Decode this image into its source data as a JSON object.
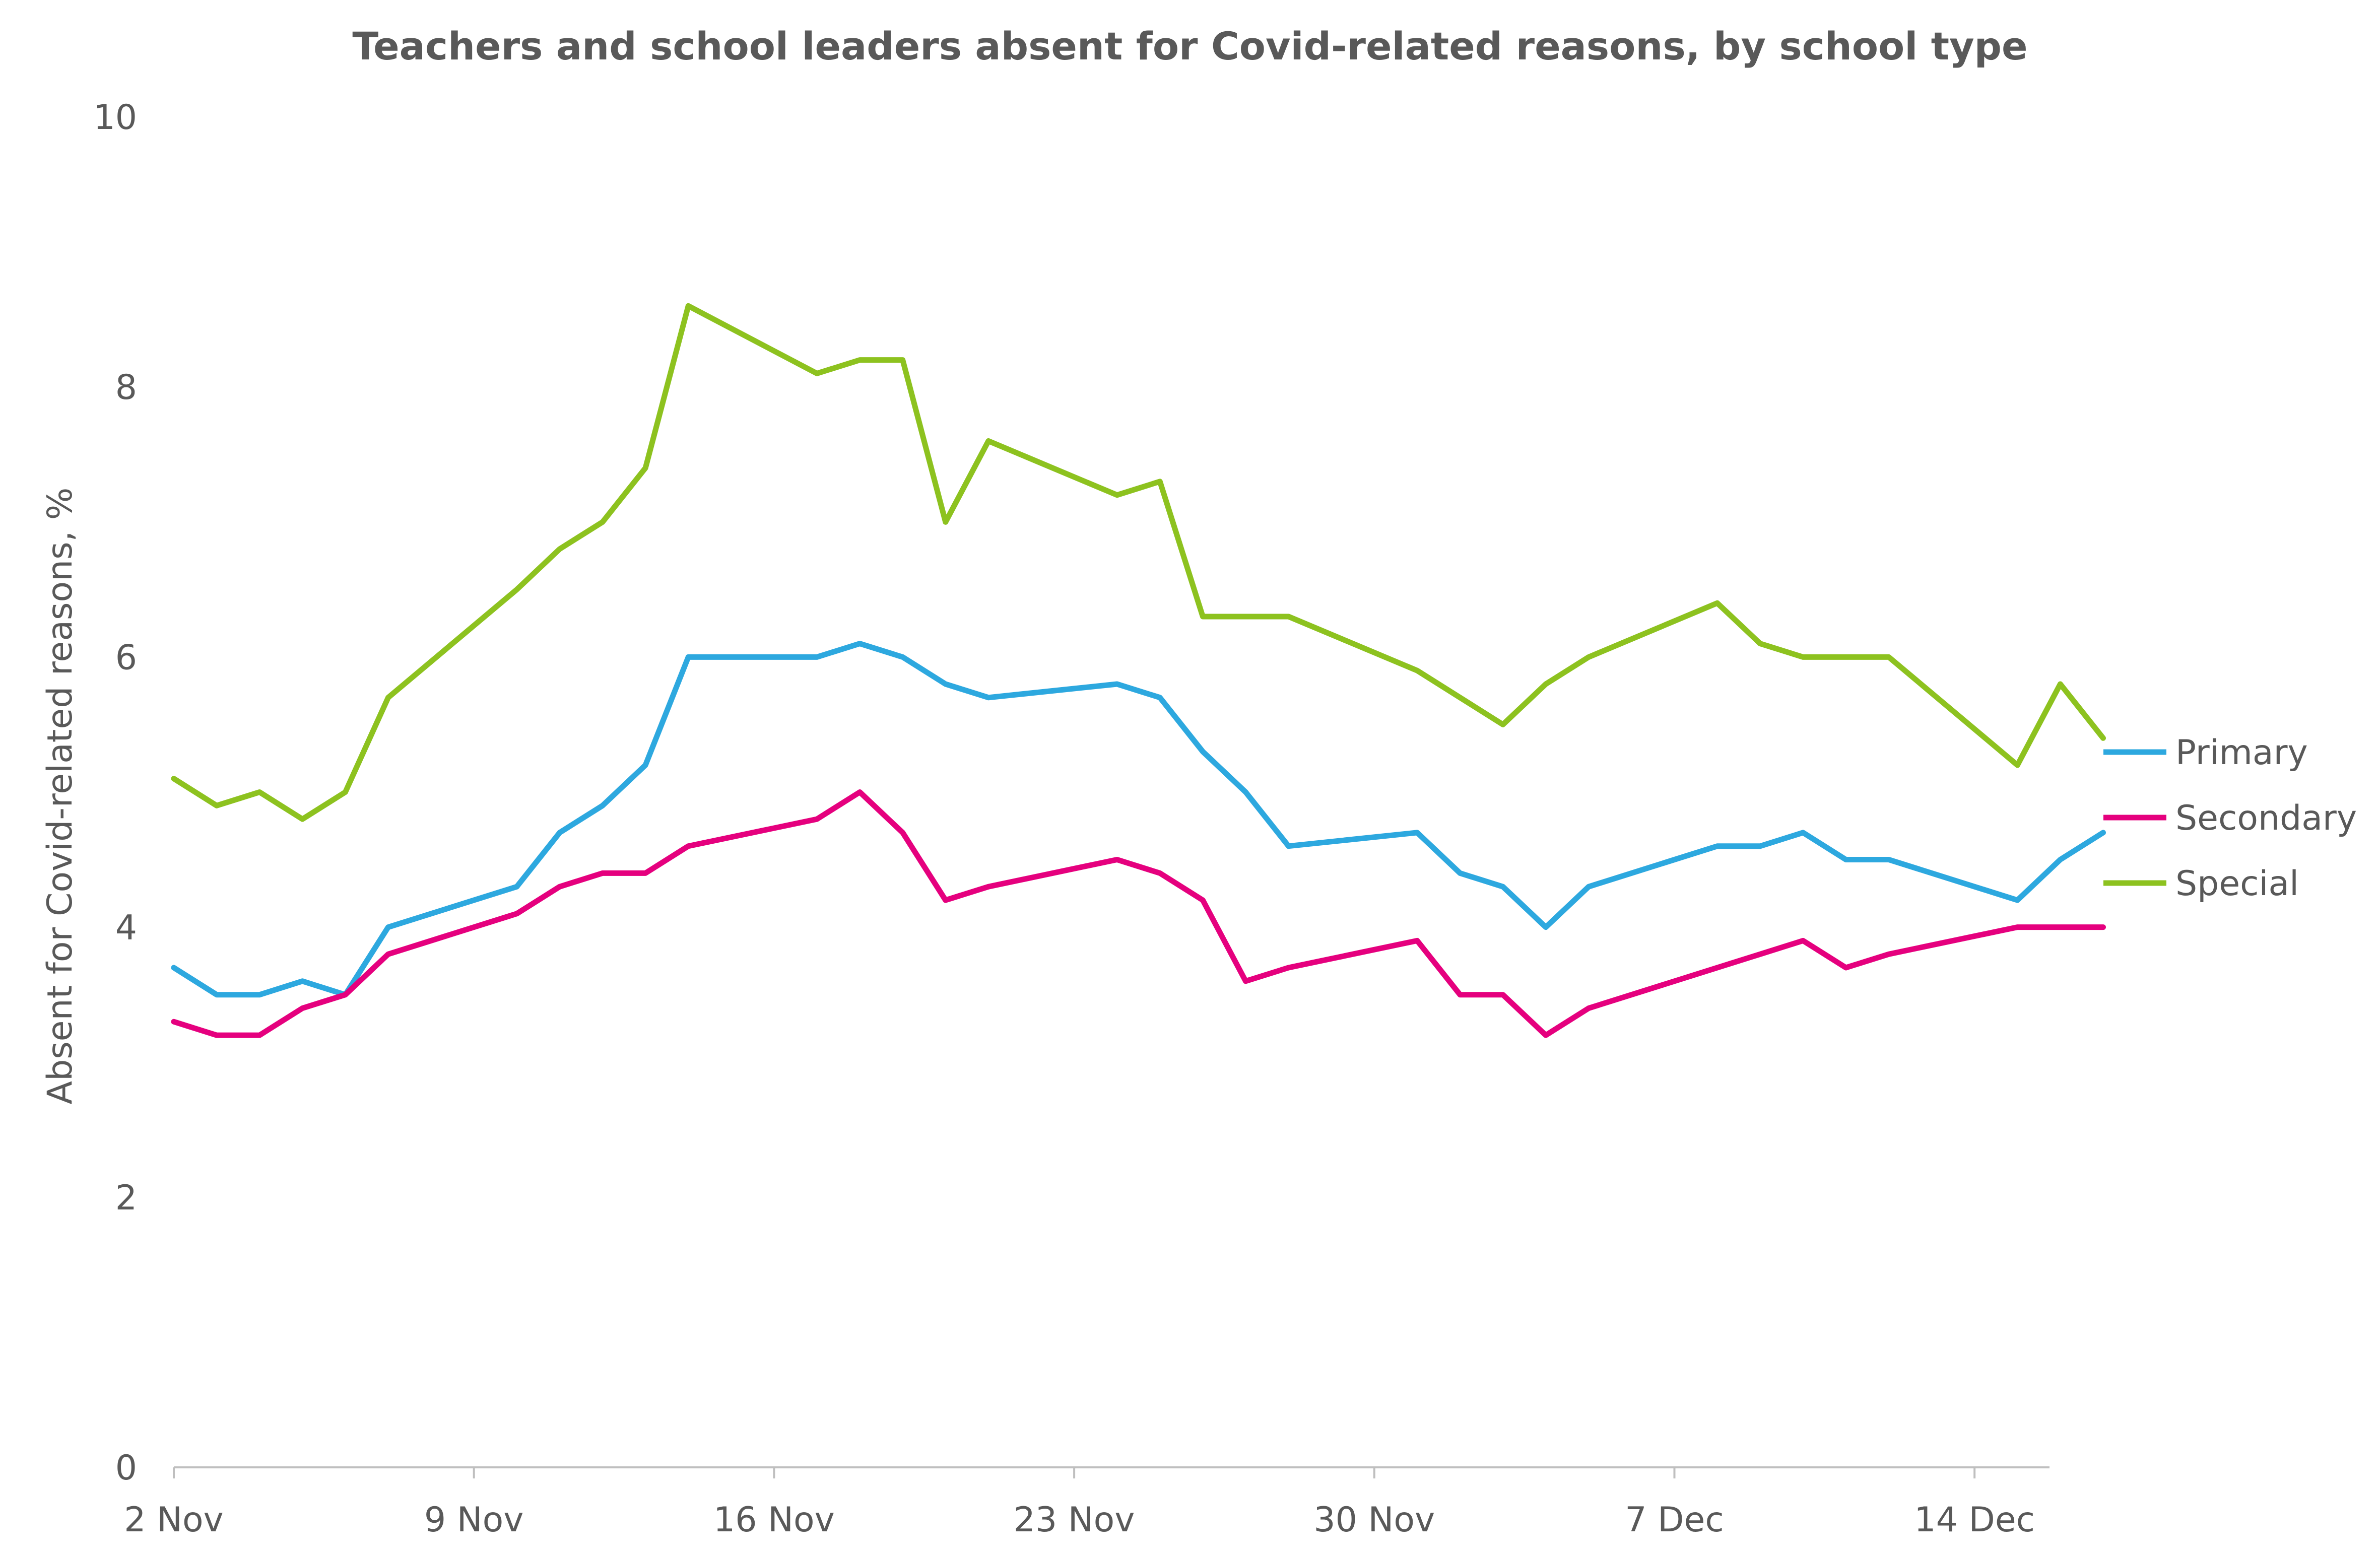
{
  "chart_data": {
    "type": "line",
    "title": "Teachers and school leaders absent for Covid-related reasons, by school type",
    "ylabel": "Absent for Covid-related reasons, %",
    "xlabel": "",
    "ylim": [
      0,
      10
    ],
    "y_ticks": [
      0,
      2,
      4,
      6,
      8,
      10
    ],
    "x_range": [
      "2020-11-02",
      "2020-12-18"
    ],
    "x_ticks": [
      {
        "date": "2020-11-02",
        "label": "2 Nov"
      },
      {
        "date": "2020-11-09",
        "label": "9 Nov"
      },
      {
        "date": "2020-11-16",
        "label": "16 Nov"
      },
      {
        "date": "2020-11-23",
        "label": "23 Nov"
      },
      {
        "date": "2020-11-30",
        "label": "30 Nov"
      },
      {
        "date": "2020-12-07",
        "label": "7 Dec"
      },
      {
        "date": "2020-12-14",
        "label": "14 Dec"
      }
    ],
    "grid": false,
    "legend_position": "right",
    "x": [
      "2020-11-02",
      "2020-11-03",
      "2020-11-04",
      "2020-11-05",
      "2020-11-06",
      "2020-11-07",
      "2020-11-10",
      "2020-11-11",
      "2020-11-12",
      "2020-11-13",
      "2020-11-14",
      "2020-11-17",
      "2020-11-18",
      "2020-11-19",
      "2020-11-20",
      "2020-11-21",
      "2020-11-24",
      "2020-11-25",
      "2020-11-26",
      "2020-11-27",
      "2020-11-28",
      "2020-12-01",
      "2020-12-02",
      "2020-12-03",
      "2020-12-04",
      "2020-12-05",
      "2020-12-08",
      "2020-12-09",
      "2020-12-10",
      "2020-12-11",
      "2020-12-12",
      "2020-12-15",
      "2020-12-16",
      "2020-12-17"
    ],
    "series": [
      {
        "name": "Primary",
        "color": "#2DA8DF",
        "values": [
          3.7,
          3.5,
          3.5,
          3.6,
          3.5,
          4.0,
          4.3,
          4.7,
          4.9,
          5.2,
          6.0,
          6.0,
          6.1,
          6.0,
          5.8,
          5.7,
          5.8,
          5.7,
          5.3,
          5.0,
          4.6,
          4.7,
          4.4,
          4.3,
          4.0,
          4.3,
          4.6,
          4.6,
          4.7,
          4.5,
          4.5,
          4.2,
          4.5,
          4.7
        ]
      },
      {
        "name": "Secondary",
        "color": "#E5007E",
        "values": [
          3.3,
          3.2,
          3.2,
          3.4,
          3.5,
          3.8,
          4.1,
          4.3,
          4.4,
          4.4,
          4.6,
          4.8,
          5.0,
          4.7,
          4.2,
          4.3,
          4.5,
          4.4,
          4.2,
          3.6,
          3.7,
          3.9,
          3.5,
          3.5,
          3.2,
          3.4,
          3.7,
          3.8,
          3.9,
          3.7,
          3.8,
          4.0,
          4.0,
          4.0
        ]
      },
      {
        "name": "Special",
        "color": "#8DC21F",
        "values": [
          5.1,
          4.9,
          5.0,
          4.8,
          5.0,
          5.7,
          6.5,
          6.8,
          7.0,
          7.4,
          8.6,
          8.1,
          8.2,
          8.2,
          7.0,
          7.6,
          7.2,
          7.3,
          6.3,
          6.3,
          6.3,
          5.9,
          5.7,
          5.5,
          5.8,
          6.0,
          6.4,
          6.1,
          6.0,
          6.0,
          6.0,
          5.2,
          5.8,
          5.4
        ]
      }
    ]
  }
}
